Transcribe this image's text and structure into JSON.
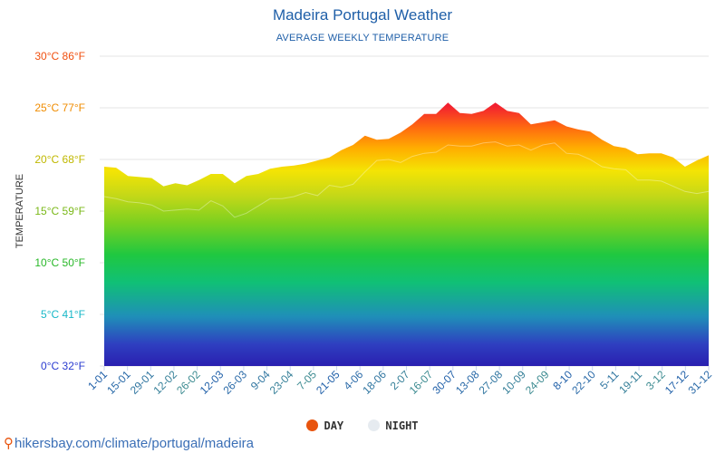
{
  "chart_data": {
    "type": "area",
    "title": "Madeira Portugal Weather",
    "subtitle": "AVERAGE WEEKLY TEMPERATURE",
    "ylabel": "TEMPERATURE",
    "ylim": [
      0,
      30
    ],
    "y_ticks": [
      {
        "value": 0,
        "label": "0°C 32°F"
      },
      {
        "value": 5,
        "label": "5°C 41°F"
      },
      {
        "value": 10,
        "label": "10°C 50°F"
      },
      {
        "value": 15,
        "label": "15°C 59°F"
      },
      {
        "value": 20,
        "label": "20°C 68°F"
      },
      {
        "value": 25,
        "label": "25°C 77°F"
      },
      {
        "value": 30,
        "label": "30°C 86°F"
      }
    ],
    "x_ticks": [
      "1-01",
      "15-01",
      "29-01",
      "12-02",
      "26-02",
      "12-03",
      "26-03",
      "9-04",
      "23-04",
      "7-05",
      "21-05",
      "4-06",
      "18-06",
      "2-07",
      "16-07",
      "30-07",
      "13-08",
      "27-08",
      "10-09",
      "24-09",
      "8-10",
      "22-10",
      "5-11",
      "19-11",
      "3-12",
      "17-12",
      "31-12"
    ],
    "series": [
      {
        "name": "DAY",
        "color": "#e8540e",
        "values": [
          19.3,
          19.2,
          18.4,
          18.3,
          18.2,
          17.4,
          17.7,
          17.5,
          18.0,
          18.6,
          18.6,
          17.7,
          18.4,
          18.6,
          19.1,
          19.3,
          19.4,
          19.6,
          19.9,
          20.2,
          20.9,
          21.4,
          22.3,
          21.9,
          22.0,
          22.6,
          23.4,
          24.4,
          24.4,
          25.5,
          24.5,
          24.4,
          24.7,
          25.5,
          24.7,
          24.5,
          23.4,
          23.6,
          23.8,
          23.2,
          22.9,
          22.7,
          21.9,
          21.3,
          21.1,
          20.5,
          20.6,
          20.6,
          20.2,
          19.3,
          19.9,
          20.4
        ]
      },
      {
        "name": "NIGHT",
        "color": "#e6ebf0",
        "values": [
          16.4,
          16.2,
          15.9,
          15.8,
          15.6,
          15.0,
          15.1,
          15.2,
          15.1,
          16.0,
          15.5,
          14.4,
          14.8,
          15.5,
          16.2,
          16.2,
          16.4,
          16.8,
          16.5,
          17.5,
          17.3,
          17.6,
          18.8,
          19.9,
          20.0,
          19.7,
          20.3,
          20.6,
          20.7,
          21.4,
          21.3,
          21.3,
          21.6,
          21.7,
          21.3,
          21.4,
          20.9,
          21.4,
          21.6,
          20.6,
          20.5,
          20.0,
          19.3,
          19.1,
          19.0,
          18.0,
          18.0,
          17.9,
          17.4,
          16.9,
          16.7,
          16.9
        ]
      }
    ]
  },
  "legend": {
    "day_label": "DAY",
    "night_label": "NIGHT",
    "day_color": "#e8540e",
    "night_color": "#e6ebf0"
  },
  "footer": {
    "pin_icon": "map-pin-icon",
    "source_text": "hikersbay.com/climate/portugal/madeira"
  }
}
